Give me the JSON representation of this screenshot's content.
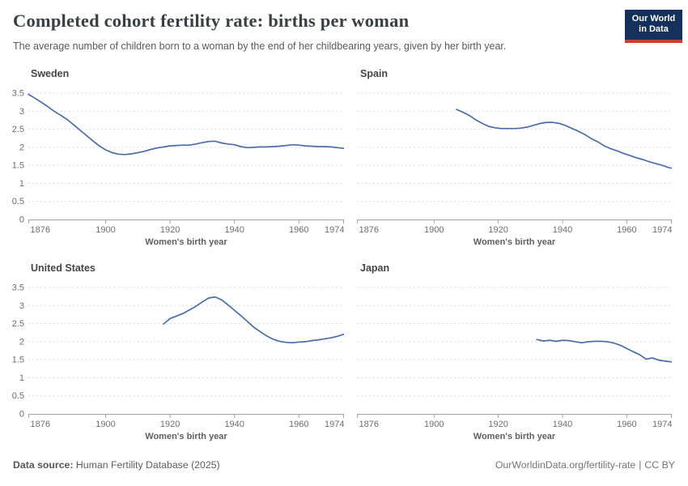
{
  "header": {
    "title": "Completed cohort fertility rate: births per woman",
    "subtitle": "The average number of children born to a woman by the end of her childbearing years, given by her birth year.",
    "logo": {
      "line1": "Our World",
      "line2": "in Data"
    }
  },
  "theme": {
    "line_color": "#4c6ca8",
    "grid_color": "#dcdcdc",
    "axis_color": "#a3a3a3",
    "tick_label_color": "#6e6e6e",
    "logo_navy": "#15305a",
    "logo_red": "#cc3b34"
  },
  "footer": {
    "source_label": "Data source:",
    "source_value": "Human Fertility Database (2025)",
    "url": "OurWorldinData.org/fertility-rate",
    "divider": "|",
    "license": "CC BY"
  },
  "chart_data": [
    {
      "type": "line",
      "title": "Sweden",
      "xlabel": "Women's birth year",
      "xlim": [
        1876,
        1974
      ],
      "ylim": [
        0,
        3.5
      ],
      "x_ticks": [
        1876,
        1900,
        1920,
        1940,
        1960,
        1974
      ],
      "y_ticks": [
        0,
        0.5,
        1,
        1.5,
        2,
        2.5,
        3,
        3.5
      ],
      "y_axis_labels": true,
      "grid": true,
      "legend": "none",
      "series": [
        {
          "name": "Sweden",
          "x": [
            1876,
            1878,
            1880,
            1882,
            1884,
            1886,
            1888,
            1890,
            1892,
            1894,
            1896,
            1898,
            1900,
            1902,
            1904,
            1906,
            1908,
            1910,
            1912,
            1914,
            1916,
            1918,
            1920,
            1922,
            1924,
            1926,
            1928,
            1930,
            1932,
            1934,
            1936,
            1938,
            1940,
            1942,
            1944,
            1946,
            1948,
            1950,
            1952,
            1954,
            1956,
            1958,
            1960,
            1962,
            1964,
            1966,
            1968,
            1970,
            1972,
            1974
          ],
          "y": [
            3.47,
            3.36,
            3.25,
            3.13,
            3.0,
            2.89,
            2.77,
            2.63,
            2.48,
            2.33,
            2.18,
            2.04,
            1.93,
            1.85,
            1.81,
            1.8,
            1.82,
            1.85,
            1.89,
            1.94,
            1.98,
            2.01,
            2.04,
            2.05,
            2.06,
            2.06,
            2.09,
            2.13,
            2.16,
            2.17,
            2.12,
            2.09,
            2.07,
            2.02,
            1.99,
            2.0,
            2.01,
            2.01,
            2.02,
            2.03,
            2.05,
            2.07,
            2.06,
            2.04,
            2.03,
            2.02,
            2.02,
            2.01,
            1.99,
            1.97
          ]
        }
      ]
    },
    {
      "type": "line",
      "title": "Spain",
      "xlabel": "Women's birth year",
      "xlim": [
        1876,
        1974
      ],
      "ylim": [
        0,
        3.5
      ],
      "x_ticks": [
        1876,
        1900,
        1920,
        1940,
        1960,
        1974
      ],
      "y_ticks": [
        0,
        0.5,
        1,
        1.5,
        2,
        2.5,
        3,
        3.5
      ],
      "y_axis_labels": false,
      "grid": true,
      "legend": "none",
      "series": [
        {
          "name": "Spain",
          "x": [
            1907,
            1909,
            1911,
            1913,
            1915,
            1917,
            1919,
            1921,
            1923,
            1925,
            1927,
            1929,
            1931,
            1933,
            1935,
            1937,
            1939,
            1941,
            1943,
            1945,
            1947,
            1949,
            1951,
            1953,
            1955,
            1957,
            1959,
            1961,
            1963,
            1965,
            1967,
            1969,
            1971,
            1973,
            1974
          ],
          "y": [
            3.05,
            2.97,
            2.88,
            2.76,
            2.66,
            2.58,
            2.54,
            2.52,
            2.52,
            2.52,
            2.53,
            2.56,
            2.61,
            2.66,
            2.69,
            2.69,
            2.66,
            2.6,
            2.52,
            2.44,
            2.35,
            2.24,
            2.15,
            2.04,
            1.96,
            1.9,
            1.83,
            1.77,
            1.71,
            1.66,
            1.6,
            1.55,
            1.5,
            1.44,
            1.42
          ]
        }
      ]
    },
    {
      "type": "line",
      "title": "United States",
      "xlabel": "Women's birth year",
      "xlim": [
        1876,
        1974
      ],
      "ylim": [
        0,
        3.5
      ],
      "x_ticks": [
        1876,
        1900,
        1920,
        1940,
        1960,
        1974
      ],
      "y_ticks": [
        0,
        0.5,
        1,
        1.5,
        2,
        2.5,
        3,
        3.5
      ],
      "y_axis_labels": true,
      "grid": true,
      "legend": "none",
      "series": [
        {
          "name": "United States",
          "x": [
            1918,
            1920,
            1922,
            1924,
            1926,
            1928,
            1930,
            1932,
            1934,
            1936,
            1938,
            1940,
            1942,
            1944,
            1946,
            1948,
            1950,
            1952,
            1954,
            1956,
            1958,
            1960,
            1962,
            1964,
            1966,
            1968,
            1970,
            1972,
            1974
          ],
          "y": [
            2.49,
            2.64,
            2.71,
            2.78,
            2.88,
            2.98,
            3.1,
            3.21,
            3.24,
            3.16,
            3.02,
            2.87,
            2.72,
            2.56,
            2.4,
            2.28,
            2.16,
            2.07,
            2.01,
            1.98,
            1.97,
            1.99,
            2.0,
            2.03,
            2.05,
            2.08,
            2.11,
            2.15,
            2.21
          ]
        }
      ]
    },
    {
      "type": "line",
      "title": "Japan",
      "xlabel": "Women's birth year",
      "xlim": [
        1876,
        1974
      ],
      "ylim": [
        0,
        3.5
      ],
      "x_ticks": [
        1876,
        1900,
        1920,
        1940,
        1960,
        1974
      ],
      "y_ticks": [
        0,
        0.5,
        1,
        1.5,
        2,
        2.5,
        3,
        3.5
      ],
      "y_axis_labels": false,
      "grid": true,
      "legend": "none",
      "series": [
        {
          "name": "Japan",
          "x": [
            1932,
            1934,
            1936,
            1938,
            1940,
            1942,
            1944,
            1946,
            1948,
            1950,
            1952,
            1954,
            1956,
            1958,
            1960,
            1962,
            1964,
            1966,
            1968,
            1970,
            1972,
            1974
          ],
          "y": [
            2.06,
            2.02,
            2.04,
            2.01,
            2.04,
            2.03,
            2.0,
            1.97,
            2.0,
            2.01,
            2.01,
            2.0,
            1.96,
            1.9,
            1.81,
            1.72,
            1.64,
            1.52,
            1.55,
            1.49,
            1.46,
            1.44
          ]
        }
      ]
    }
  ]
}
